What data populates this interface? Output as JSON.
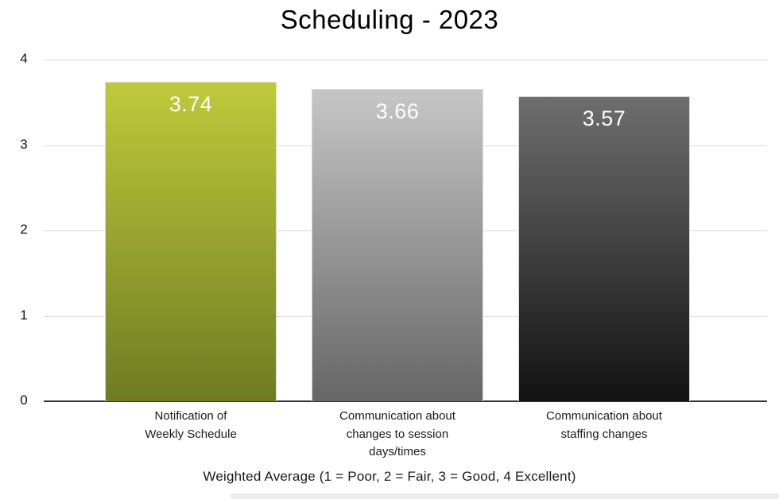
{
  "page": {
    "background": "#ffffff",
    "bottom_strip_color": "#ececec"
  },
  "chart_data": {
    "type": "bar",
    "title": "Scheduling - 2023",
    "xlabel": "Weighted Average (1 = Poor, 2 = Fair, 3 = Good, 4 Excellent)",
    "ylabel": "",
    "categories": [
      "Notification of\nWeekly Schedule",
      "Communication about\nchanges to session\ndays/times",
      "Communication about\nstaffing changes"
    ],
    "values": [
      3.74,
      3.66,
      3.57
    ],
    "value_labels": [
      "3.74",
      "3.66",
      "3.57"
    ],
    "ylim": [
      0,
      4
    ],
    "yticks": [
      0,
      1,
      2,
      3,
      4
    ],
    "grid": true,
    "legend": "none",
    "bar_gradients": [
      {
        "top": "#bfca3a",
        "bottom": "#6e7c22"
      },
      {
        "top": "#c6c6c6",
        "bottom": "#666666"
      },
      {
        "top": "#6e6e6e",
        "bottom": "#121212"
      }
    ],
    "bar_border_color": "#d9d9d9",
    "value_label_color": "#ffffff",
    "gridline_color": "#d9d9d9",
    "axis_line_color": "#333333",
    "text_color": "#000000"
  }
}
